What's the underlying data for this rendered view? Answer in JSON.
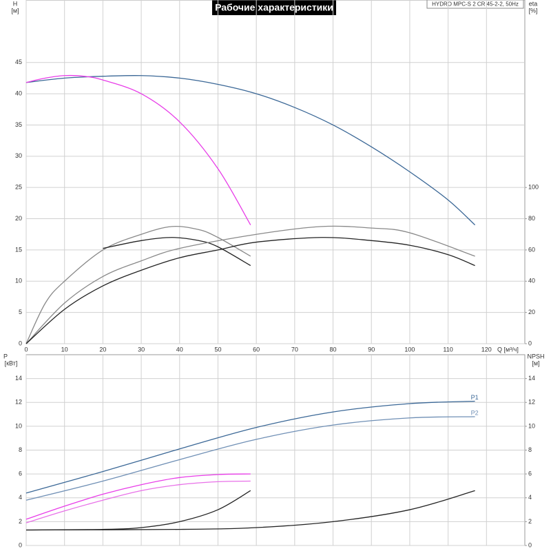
{
  "chart_data": [
    {
      "type": "line",
      "title": "Рабочие характеристики",
      "subtitle": "HYDRO MPC-S 2 CR 45-2-2, 50Hz",
      "y_label": "H",
      "y_unit": "[м]",
      "y2_label": "eta",
      "y2_unit": "[%]",
      "x_label": "Q [м³/ч]",
      "xlim": [
        0,
        130
      ],
      "xticks": [
        0,
        10,
        20,
        30,
        40,
        50,
        60,
        70,
        80,
        90,
        100,
        110,
        120
      ],
      "ylim": [
        0,
        55
      ],
      "yticks": [
        0,
        5,
        10,
        15,
        20,
        25,
        30,
        35,
        40,
        45
      ],
      "y2lim": [
        0,
        220
      ],
      "y2ticks": [
        0,
        20,
        40,
        60,
        80,
        100
      ],
      "grid": true,
      "series": [
        {
          "color": "#3a6796",
          "x": [
            0,
            10,
            20,
            30,
            40,
            50,
            60,
            70,
            80,
            90,
            100,
            110,
            117
          ],
          "values": [
            41.8,
            42.5,
            42.8,
            42.9,
            42.5,
            41.5,
            40,
            37.8,
            35,
            31.5,
            27.5,
            23,
            19
          ]
        },
        {
          "color": "#e83ce8",
          "x": [
            0,
            5,
            10,
            15,
            20,
            30,
            40,
            50,
            58.5
          ],
          "values": [
            41.8,
            42.5,
            42.9,
            42.8,
            42.2,
            40,
            35.5,
            28,
            19
          ]
        },
        {
          "color": "#888888",
          "axis": "y2",
          "x": [
            0,
            5,
            10,
            20,
            30,
            38,
            45,
            50,
            58.5
          ],
          "values": [
            0,
            26,
            40,
            60,
            70,
            75,
            73,
            68,
            56
          ]
        },
        {
          "color": "#222222",
          "axis": "y2",
          "x": [
            20,
            30,
            38,
            45,
            50,
            58.5
          ],
          "values": [
            61,
            66,
            68,
            66,
            62,
            50
          ]
        },
        {
          "color": "#888888",
          "axis": "y2",
          "x": [
            0,
            10,
            20,
            30,
            40,
            60,
            77,
            90,
            100,
            117
          ],
          "values": [
            0,
            26,
            43,
            53,
            61,
            70,
            75,
            74,
            71,
            56
          ]
        },
        {
          "color": "#222222",
          "axis": "y2",
          "x": [
            0,
            10,
            20,
            30,
            40,
            50,
            60,
            77,
            90,
            100,
            110,
            117
          ],
          "values": [
            0,
            22,
            37,
            47,
            55,
            60,
            65,
            68,
            66,
            63,
            57,
            50
          ]
        }
      ]
    },
    {
      "type": "line",
      "y_label": "P",
      "y_unit": "[кВт]",
      "y2_label": "NPSH",
      "y2_unit": "[м]",
      "xlim": [
        0,
        130
      ],
      "ylim": [
        0,
        16
      ],
      "yticks": [
        0,
        2,
        4,
        6,
        8,
        10,
        12,
        14
      ],
      "y2lim": [
        0,
        16
      ],
      "y2ticks": [
        0,
        2,
        4,
        6,
        8,
        10,
        12,
        14
      ],
      "grid": true,
      "series": [
        {
          "name": "P1",
          "color": "#3a6796",
          "x": [
            0,
            20,
            40,
            60,
            80,
            100,
            117
          ],
          "values": [
            4.4,
            6.2,
            8.1,
            9.9,
            11.2,
            11.9,
            12.1
          ]
        },
        {
          "name": "P2",
          "color": "#6f8fb5",
          "x": [
            0,
            20,
            40,
            60,
            80,
            100,
            117
          ],
          "values": [
            3.8,
            5.4,
            7.2,
            8.9,
            10.1,
            10.7,
            10.8
          ]
        },
        {
          "color": "#e83ce8",
          "x": [
            0,
            10,
            20,
            30,
            40,
            50,
            58.5
          ],
          "values": [
            2.2,
            3.3,
            4.3,
            5.1,
            5.7,
            5.95,
            6
          ]
        },
        {
          "color": "#e870e8",
          "x": [
            0,
            10,
            20,
            30,
            40,
            50,
            58.5
          ],
          "values": [
            1.9,
            2.9,
            3.8,
            4.6,
            5.1,
            5.35,
            5.4
          ]
        },
        {
          "color": "#222222",
          "axis": "y2",
          "x": [
            0,
            20,
            30,
            40,
            50,
            58.5
          ],
          "values": [
            1.3,
            1.35,
            1.5,
            2,
            3,
            4.6
          ]
        },
        {
          "color": "#222222",
          "axis": "y2",
          "x": [
            0,
            40,
            60,
            80,
            100,
            117
          ],
          "values": [
            1.3,
            1.35,
            1.5,
            2,
            3,
            4.6
          ]
        }
      ]
    }
  ]
}
